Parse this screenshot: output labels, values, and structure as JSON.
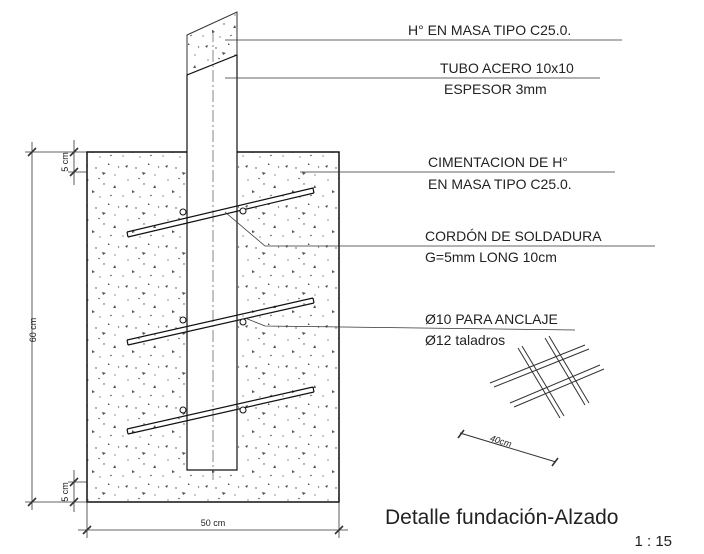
{
  "labels": [
    {
      "lines": [
        "H° EN MASA TIPO C25.0."
      ]
    },
    {
      "lines": [
        "TUBO ACERO  10x10",
        "ESPESOR 3mm"
      ]
    },
    {
      "lines": [
        "CIMENTACION DE H°",
        "EN MASA TIPO C25.0."
      ]
    },
    {
      "lines": [
        "CORDÓN DE SOLDADURA",
        "G=5mm LONG 10cm"
      ]
    },
    {
      "lines": [
        "Ø10 PARA ANCLAJE",
        "Ø12 taladros"
      ]
    }
  ],
  "dimensions": {
    "top_cover": "5 cm",
    "height": "60 cm",
    "bottom_cover": "5 cm",
    "width": "50 cm",
    "mesh": "40cm"
  },
  "title": "Detalle fundación-Alzado",
  "scale": "1 : 15"
}
